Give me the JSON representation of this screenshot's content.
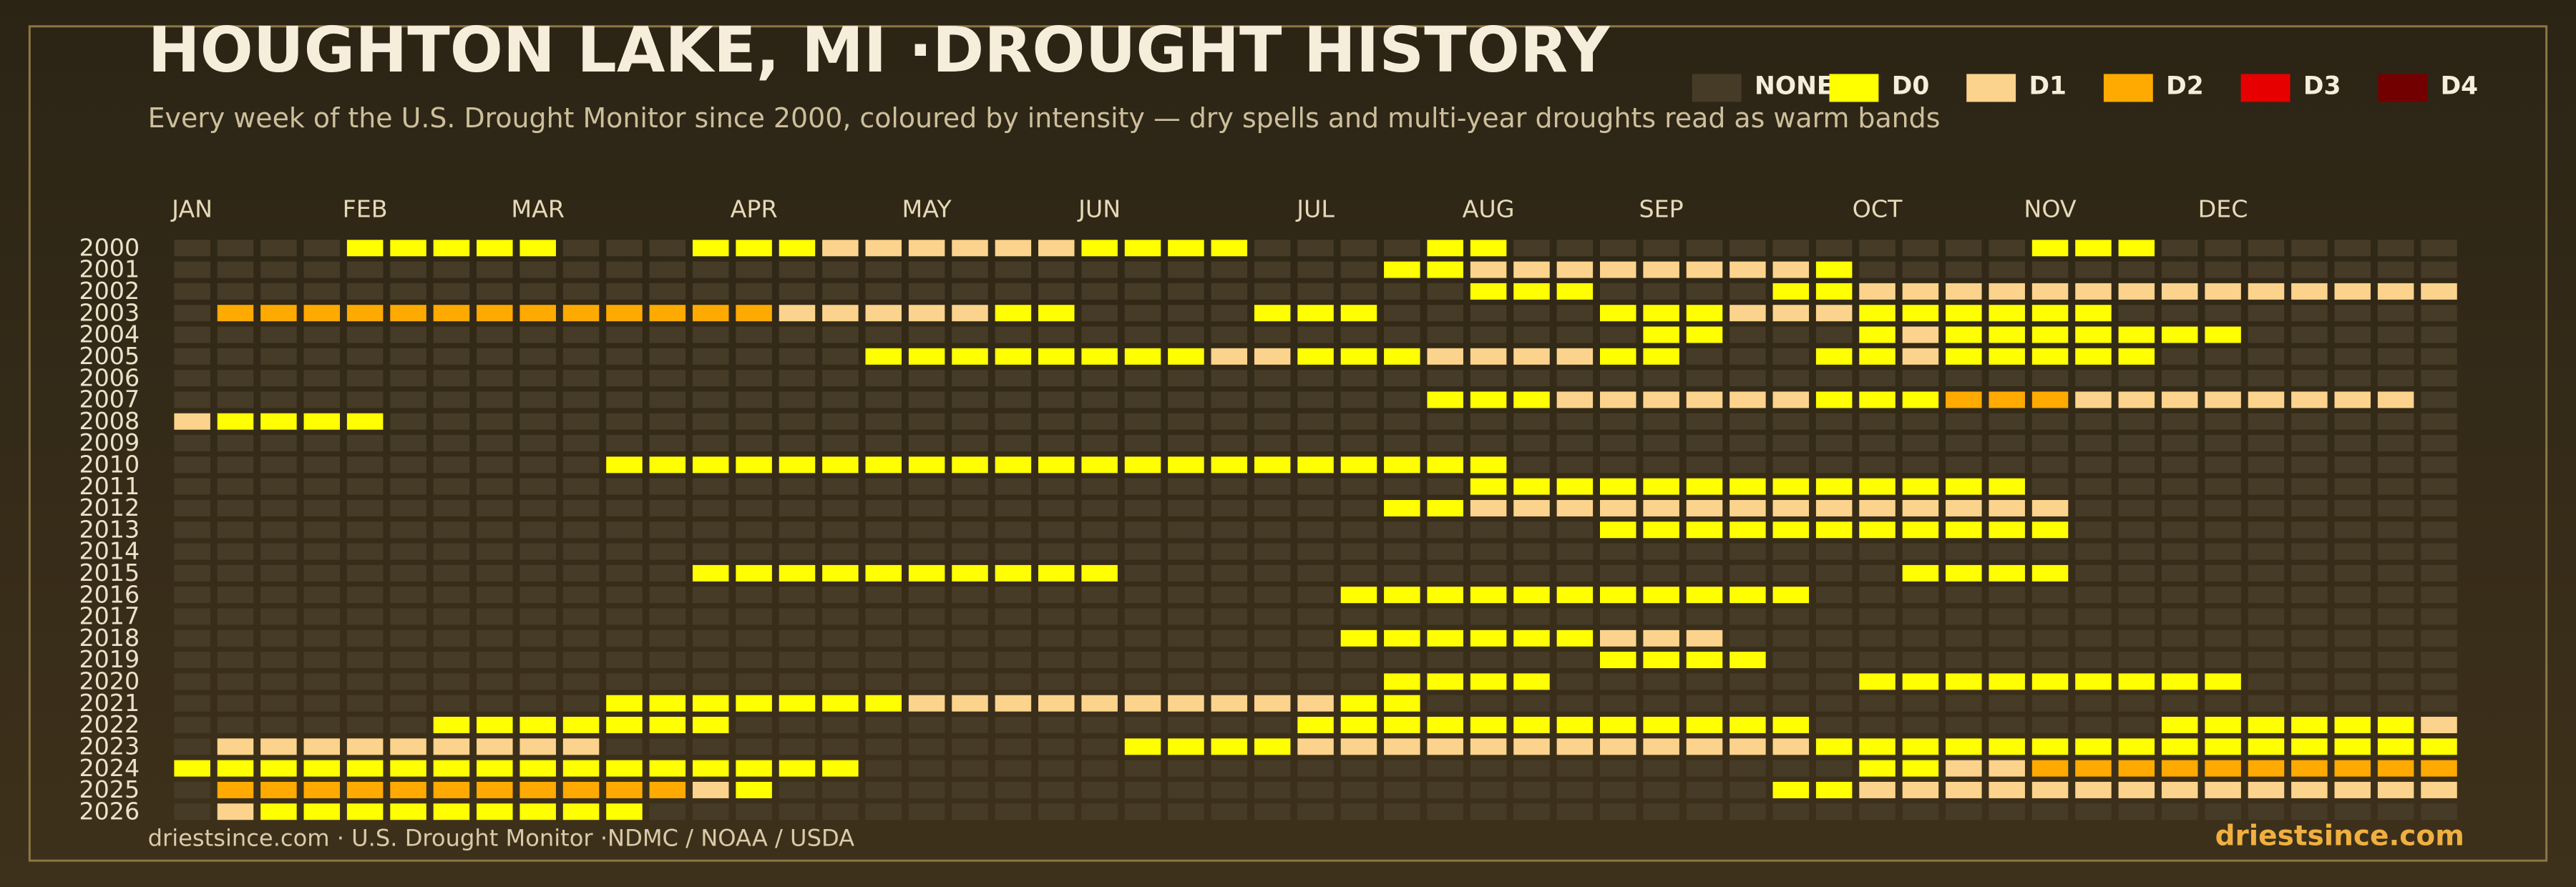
{
  "chart_data": {
    "type": "heatmap",
    "title": "HOUGHTON LAKE, MI ·DROUGHT HISTORY",
    "subtitle": "Every week of the U.S. Drought Monitor since 2000, coloured by intensity — dry spells and multi-year droughts read as warm bands",
    "source": "driestsince.com  · U.S. Drought Monitor ·NDMC / NOAA / USDA",
    "brand": "driestsince.com",
    "levels": [
      {
        "name": "NONE",
        "color": "#463b27"
      },
      {
        "name": "D0",
        "color": "#ffff00"
      },
      {
        "name": "D1",
        "color": "#fcd38c"
      },
      {
        "name": "D2",
        "color": "#ffaa00"
      },
      {
        "name": "D3",
        "color": "#e60000"
      },
      {
        "name": "D4",
        "color": "#730000"
      }
    ],
    "categories": [
      "JAN",
      null,
      null,
      null,
      "FEB",
      null,
      null,
      null,
      "MAR",
      null,
      null,
      null,
      null,
      "APR",
      null,
      null,
      null,
      "MAY",
      null,
      null,
      null,
      "JUN",
      null,
      null,
      null,
      null,
      "JUL",
      null,
      null,
      null,
      "AUG",
      null,
      null,
      null,
      "SEP",
      null,
      null,
      null,
      null,
      "OCT",
      null,
      null,
      null,
      "NOV",
      null,
      null,
      null,
      "DEC",
      null,
      null,
      null,
      null,
      null
    ],
    "years": [
      2000,
      2001,
      2002,
      2003,
      2004,
      2005,
      2006,
      2007,
      2008,
      2009,
      2010,
      2011,
      2012,
      2013,
      2014,
      2015,
      2016,
      2017,
      2018,
      2019,
      2020,
      2021,
      2022,
      2023,
      2024,
      2025,
      2026
    ],
    "values": [
      [
        0,
        0,
        0,
        0,
        1,
        1,
        1,
        1,
        1,
        0,
        0,
        0,
        1,
        1,
        1,
        2,
        2,
        2,
        2,
        2,
        2,
        1,
        1,
        1,
        1,
        0,
        0,
        0,
        0,
        1,
        1,
        0,
        0,
        0,
        0,
        0,
        0,
        0,
        0,
        0,
        0,
        0,
        0,
        1,
        1,
        1,
        0,
        0,
        0,
        0,
        0,
        0,
        0
      ],
      [
        0,
        0,
        0,
        0,
        0,
        0,
        0,
        0,
        0,
        0,
        0,
        0,
        0,
        0,
        0,
        0,
        0,
        0,
        0,
        0,
        0,
        0,
        0,
        0,
        0,
        0,
        0,
        0,
        1,
        1,
        2,
        2,
        2,
        2,
        2,
        2,
        2,
        2,
        1,
        0,
        0,
        0,
        0,
        0,
        0,
        0,
        0,
        0,
        0,
        0,
        0,
        0,
        0
      ],
      [
        0,
        0,
        0,
        0,
        0,
        0,
        0,
        0,
        0,
        0,
        0,
        0,
        0,
        0,
        0,
        0,
        0,
        0,
        0,
        0,
        0,
        0,
        0,
        0,
        0,
        0,
        0,
        0,
        0,
        0,
        1,
        1,
        1,
        0,
        0,
        0,
        0,
        1,
        1,
        2,
        2,
        2,
        2,
        2,
        2,
        2,
        2,
        2,
        2,
        2,
        2,
        2,
        2
      ],
      [
        0,
        3,
        3,
        3,
        3,
        3,
        3,
        3,
        3,
        3,
        3,
        3,
        3,
        3,
        2,
        2,
        2,
        2,
        2,
        1,
        1,
        0,
        0,
        0,
        0,
        1,
        1,
        1,
        0,
        0,
        0,
        0,
        0,
        1,
        1,
        1,
        2,
        2,
        2,
        1,
        1,
        1,
        1,
        1,
        1,
        0,
        0,
        0,
        0,
        0,
        0,
        0,
        0
      ],
      [
        0,
        0,
        0,
        0,
        0,
        0,
        0,
        0,
        0,
        0,
        0,
        0,
        0,
        0,
        0,
        0,
        0,
        0,
        0,
        0,
        0,
        0,
        0,
        0,
        0,
        0,
        0,
        0,
        0,
        0,
        0,
        0,
        0,
        0,
        1,
        1,
        0,
        0,
        0,
        1,
        2,
        1,
        1,
        1,
        1,
        1,
        1,
        1,
        0,
        0,
        0,
        0,
        0
      ],
      [
        0,
        0,
        0,
        0,
        0,
        0,
        0,
        0,
        0,
        0,
        0,
        0,
        0,
        0,
        0,
        0,
        1,
        1,
        1,
        1,
        1,
        1,
        1,
        1,
        2,
        2,
        1,
        1,
        1,
        2,
        2,
        2,
        2,
        1,
        1,
        0,
        0,
        0,
        1,
        1,
        2,
        1,
        1,
        1,
        1,
        1,
        0,
        0,
        0,
        0,
        0,
        0,
        0
      ],
      [
        0,
        0,
        0,
        0,
        0,
        0,
        0,
        0,
        0,
        0,
        0,
        0,
        0,
        0,
        0,
        0,
        0,
        0,
        0,
        0,
        0,
        0,
        0,
        0,
        0,
        0,
        0,
        0,
        0,
        0,
        0,
        0,
        0,
        0,
        0,
        0,
        0,
        0,
        0,
        0,
        0,
        0,
        0,
        0,
        0,
        0,
        0,
        0,
        0,
        0,
        0,
        0,
        0
      ],
      [
        0,
        0,
        0,
        0,
        0,
        0,
        0,
        0,
        0,
        0,
        0,
        0,
        0,
        0,
        0,
        0,
        0,
        0,
        0,
        0,
        0,
        0,
        0,
        0,
        0,
        0,
        0,
        0,
        0,
        1,
        1,
        1,
        2,
        2,
        2,
        2,
        2,
        2,
        1,
        1,
        1,
        3,
        3,
        3,
        2,
        2,
        2,
        2,
        2,
        2,
        2,
        2,
        0
      ],
      [
        2,
        1,
        1,
        1,
        1,
        0,
        0,
        0,
        0,
        0,
        0,
        0,
        0,
        0,
        0,
        0,
        0,
        0,
        0,
        0,
        0,
        0,
        0,
        0,
        0,
        0,
        0,
        0,
        0,
        0,
        0,
        0,
        0,
        0,
        0,
        0,
        0,
        0,
        0,
        0,
        0,
        0,
        0,
        0,
        0,
        0,
        0,
        0,
        0,
        0,
        0,
        0,
        0
      ],
      [
        0,
        0,
        0,
        0,
        0,
        0,
        0,
        0,
        0,
        0,
        0,
        0,
        0,
        0,
        0,
        0,
        0,
        0,
        0,
        0,
        0,
        0,
        0,
        0,
        0,
        0,
        0,
        0,
        0,
        0,
        0,
        0,
        0,
        0,
        0,
        0,
        0,
        0,
        0,
        0,
        0,
        0,
        0,
        0,
        0,
        0,
        0,
        0,
        0,
        0,
        0,
        0,
        0
      ],
      [
        0,
        0,
        0,
        0,
        0,
        0,
        0,
        0,
        0,
        0,
        1,
        1,
        1,
        1,
        1,
        1,
        1,
        1,
        1,
        1,
        1,
        1,
        1,
        1,
        1,
        1,
        1,
        1,
        1,
        1,
        1,
        0,
        0,
        0,
        0,
        0,
        0,
        0,
        0,
        0,
        0,
        0,
        0,
        0,
        0,
        0,
        0,
        0,
        0,
        0,
        0,
        0,
        0
      ],
      [
        0,
        0,
        0,
        0,
        0,
        0,
        0,
        0,
        0,
        0,
        0,
        0,
        0,
        0,
        0,
        0,
        0,
        0,
        0,
        0,
        0,
        0,
        0,
        0,
        0,
        0,
        0,
        0,
        0,
        0,
        1,
        1,
        1,
        1,
        1,
        1,
        1,
        1,
        1,
        1,
        1,
        1,
        1,
        0,
        0,
        0,
        0,
        0,
        0,
        0,
        0,
        0,
        0
      ],
      [
        0,
        0,
        0,
        0,
        0,
        0,
        0,
        0,
        0,
        0,
        0,
        0,
        0,
        0,
        0,
        0,
        0,
        0,
        0,
        0,
        0,
        0,
        0,
        0,
        0,
        0,
        0,
        0,
        1,
        1,
        2,
        2,
        2,
        2,
        2,
        2,
        2,
        2,
        2,
        2,
        2,
        2,
        2,
        2,
        0,
        0,
        0,
        0,
        0,
        0,
        0,
        0,
        0
      ],
      [
        0,
        0,
        0,
        0,
        0,
        0,
        0,
        0,
        0,
        0,
        0,
        0,
        0,
        0,
        0,
        0,
        0,
        0,
        0,
        0,
        0,
        0,
        0,
        0,
        0,
        0,
        0,
        0,
        0,
        0,
        0,
        0,
        0,
        1,
        1,
        1,
        1,
        1,
        1,
        1,
        1,
        1,
        1,
        1,
        0,
        0,
        0,
        0,
        0,
        0,
        0,
        0,
        0
      ],
      [
        0,
        0,
        0,
        0,
        0,
        0,
        0,
        0,
        0,
        0,
        0,
        0,
        0,
        0,
        0,
        0,
        0,
        0,
        0,
        0,
        0,
        0,
        0,
        0,
        0,
        0,
        0,
        0,
        0,
        0,
        0,
        0,
        0,
        0,
        0,
        0,
        0,
        0,
        0,
        0,
        0,
        0,
        0,
        0,
        0,
        0,
        0,
        0,
        0,
        0,
        0,
        0,
        0
      ],
      [
        0,
        0,
        0,
        0,
        0,
        0,
        0,
        0,
        0,
        0,
        0,
        0,
        1,
        1,
        1,
        1,
        1,
        1,
        1,
        1,
        1,
        1,
        0,
        0,
        0,
        0,
        0,
        0,
        0,
        0,
        0,
        0,
        0,
        0,
        0,
        0,
        0,
        0,
        0,
        0,
        1,
        1,
        1,
        1,
        0,
        0,
        0,
        0,
        0,
        0,
        0,
        0,
        0
      ],
      [
        0,
        0,
        0,
        0,
        0,
        0,
        0,
        0,
        0,
        0,
        0,
        0,
        0,
        0,
        0,
        0,
        0,
        0,
        0,
        0,
        0,
        0,
        0,
        0,
        0,
        0,
        0,
        1,
        1,
        1,
        1,
        1,
        1,
        1,
        1,
        1,
        1,
        1,
        0,
        0,
        0,
        0,
        0,
        0,
        0,
        0,
        0,
        0,
        0,
        0,
        0,
        0,
        0
      ],
      [
        0,
        0,
        0,
        0,
        0,
        0,
        0,
        0,
        0,
        0,
        0,
        0,
        0,
        0,
        0,
        0,
        0,
        0,
        0,
        0,
        0,
        0,
        0,
        0,
        0,
        0,
        0,
        0,
        0,
        0,
        0,
        0,
        0,
        0,
        0,
        0,
        0,
        0,
        0,
        0,
        0,
        0,
        0,
        0,
        0,
        0,
        0,
        0,
        0,
        0,
        0,
        0,
        0
      ],
      [
        0,
        0,
        0,
        0,
        0,
        0,
        0,
        0,
        0,
        0,
        0,
        0,
        0,
        0,
        0,
        0,
        0,
        0,
        0,
        0,
        0,
        0,
        0,
        0,
        0,
        0,
        0,
        1,
        1,
        1,
        1,
        1,
        1,
        2,
        2,
        2,
        0,
        0,
        0,
        0,
        0,
        0,
        0,
        0,
        0,
        0,
        0,
        0,
        0,
        0,
        0,
        0,
        0
      ],
      [
        0,
        0,
        0,
        0,
        0,
        0,
        0,
        0,
        0,
        0,
        0,
        0,
        0,
        0,
        0,
        0,
        0,
        0,
        0,
        0,
        0,
        0,
        0,
        0,
        0,
        0,
        0,
        0,
        0,
        0,
        0,
        0,
        0,
        1,
        1,
        1,
        1,
        0,
        0,
        0,
        0,
        0,
        0,
        0,
        0,
        0,
        0,
        0,
        0,
        0,
        0,
        0,
        0
      ],
      [
        0,
        0,
        0,
        0,
        0,
        0,
        0,
        0,
        0,
        0,
        0,
        0,
        0,
        0,
        0,
        0,
        0,
        0,
        0,
        0,
        0,
        0,
        0,
        0,
        0,
        0,
        0,
        0,
        1,
        1,
        1,
        1,
        0,
        0,
        0,
        0,
        0,
        0,
        0,
        1,
        1,
        1,
        1,
        1,
        1,
        1,
        1,
        1,
        0,
        0,
        0,
        0,
        0
      ],
      [
        0,
        0,
        0,
        0,
        0,
        0,
        0,
        0,
        0,
        0,
        1,
        1,
        1,
        1,
        1,
        1,
        1,
        2,
        2,
        2,
        2,
        2,
        2,
        2,
        2,
        2,
        2,
        1,
        1,
        0,
        0,
        0,
        0,
        0,
        0,
        0,
        0,
        0,
        0,
        0,
        0,
        0,
        0,
        0,
        0,
        0,
        0,
        0,
        0,
        0,
        0,
        0,
        0
      ],
      [
        0,
        0,
        0,
        0,
        0,
        0,
        1,
        1,
        1,
        1,
        1,
        1,
        1,
        0,
        0,
        0,
        0,
        0,
        0,
        0,
        0,
        0,
        0,
        0,
        0,
        0,
        1,
        1,
        1,
        1,
        1,
        1,
        1,
        1,
        1,
        1,
        1,
        1,
        0,
        0,
        0,
        0,
        0,
        0,
        0,
        0,
        1,
        1,
        1,
        1,
        1,
        1,
        2
      ],
      [
        0,
        2,
        2,
        2,
        2,
        2,
        2,
        2,
        2,
        2,
        0,
        0,
        0,
        0,
        0,
        0,
        0,
        0,
        0,
        0,
        0,
        0,
        1,
        1,
        1,
        1,
        2,
        2,
        2,
        2,
        2,
        2,
        2,
        2,
        2,
        2,
        2,
        2,
        1,
        1,
        1,
        1,
        1,
        1,
        1,
        1,
        1,
        1,
        1,
        1,
        1,
        1,
        1
      ],
      [
        1,
        1,
        1,
        1,
        1,
        1,
        1,
        1,
        1,
        1,
        1,
        1,
        1,
        1,
        1,
        1,
        0,
        0,
        0,
        0,
        0,
        0,
        0,
        0,
        0,
        0,
        0,
        0,
        0,
        0,
        0,
        0,
        0,
        0,
        0,
        0,
        0,
        0,
        0,
        1,
        1,
        2,
        2,
        3,
        3,
        3,
        3,
        3,
        3,
        3,
        3,
        3,
        3
      ],
      [
        0,
        3,
        3,
        3,
        3,
        3,
        3,
        3,
        3,
        3,
        3,
        3,
        2,
        1,
        0,
        0,
        0,
        0,
        0,
        0,
        0,
        0,
        0,
        0,
        0,
        0,
        0,
        0,
        0,
        0,
        0,
        0,
        0,
        0,
        0,
        0,
        0,
        1,
        1,
        2,
        2,
        2,
        2,
        2,
        2,
        2,
        2,
        2,
        2,
        2,
        2,
        2,
        2
      ],
      [
        0,
        2,
        1,
        1,
        1,
        1,
        1,
        1,
        1,
        1,
        1,
        0,
        0,
        0,
        0,
        0,
        0,
        0,
        0,
        0,
        0,
        0,
        0,
        0,
        0,
        0,
        0,
        0,
        0,
        0,
        0,
        0,
        0,
        0,
        0,
        0,
        0,
        0,
        0,
        0,
        0,
        0,
        0,
        0,
        0,
        0,
        0,
        0,
        0,
        0,
        0,
        0,
        0
      ]
    ]
  }
}
